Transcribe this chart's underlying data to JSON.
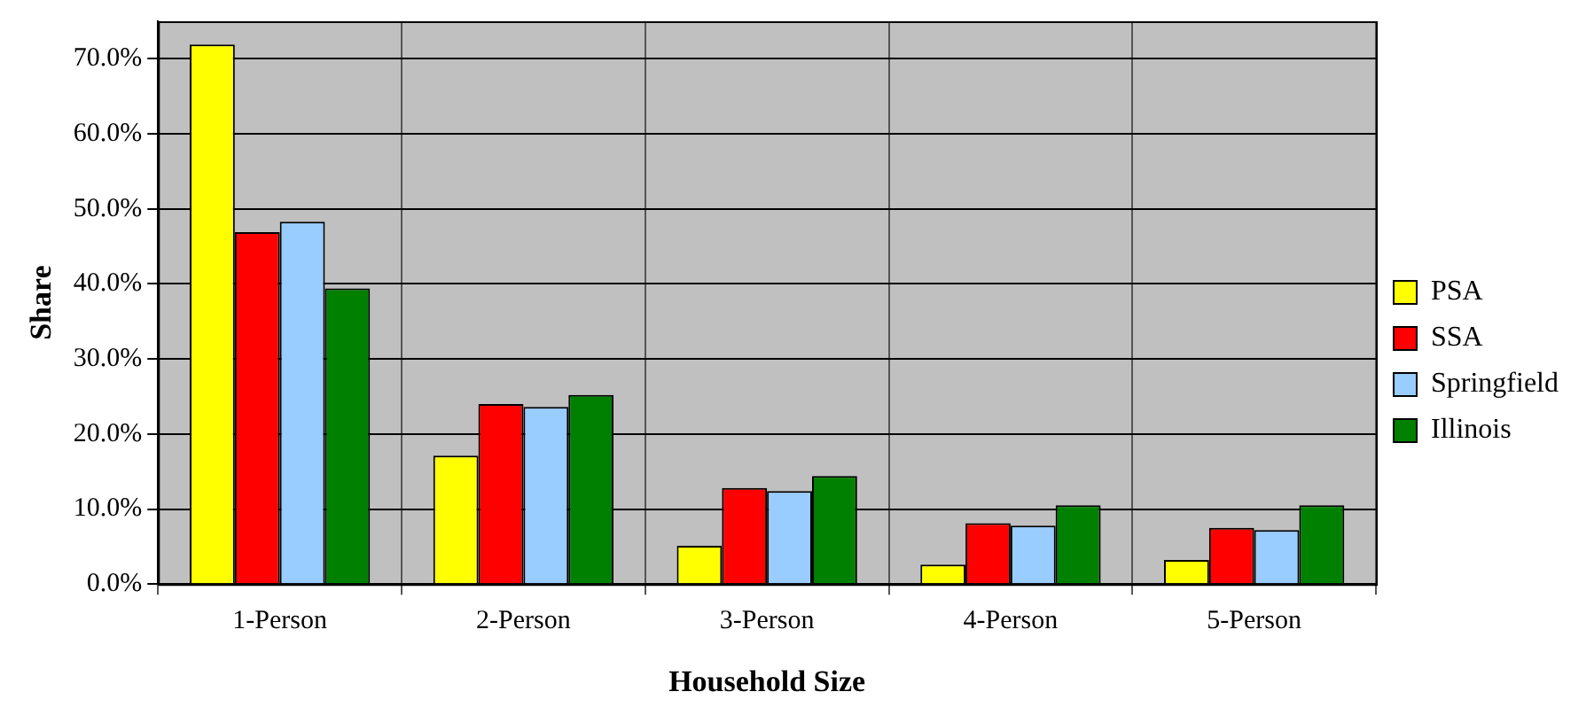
{
  "chart_data": {
    "type": "bar",
    "xlabel": "Household Size",
    "ylabel": "Share",
    "categories": [
      "1-Person",
      "2-Person",
      "3-Person",
      "4-Person",
      "5-Person"
    ],
    "series": [
      {
        "name": "PSA",
        "color": "#ffff00",
        "values": [
          71.9,
          17.1,
          5.1,
          2.6,
          3.2
        ]
      },
      {
        "name": "SSA",
        "color": "#ff0000",
        "values": [
          46.9,
          24.0,
          12.8,
          8.1,
          7.5
        ]
      },
      {
        "name": "Springfield",
        "color": "#99ccff",
        "values": [
          48.3,
          23.6,
          12.4,
          7.8,
          7.2
        ]
      },
      {
        "name": "Illinois",
        "color": "#008000",
        "values": [
          39.4,
          25.2,
          14.4,
          10.5,
          10.5
        ]
      }
    ],
    "ylim": [
      0,
      75
    ],
    "yticks": [
      {
        "value": 0,
        "label": "0.0%"
      },
      {
        "value": 10,
        "label": "10.0%"
      },
      {
        "value": 20,
        "label": "20.0%"
      },
      {
        "value": 30,
        "label": "30.0%"
      },
      {
        "value": 40,
        "label": "40.0%"
      },
      {
        "value": 50,
        "label": "50.0%"
      },
      {
        "value": 60,
        "label": "60.0%"
      },
      {
        "value": 70,
        "label": "70.0%"
      }
    ],
    "grid": true,
    "legend": "right"
  }
}
